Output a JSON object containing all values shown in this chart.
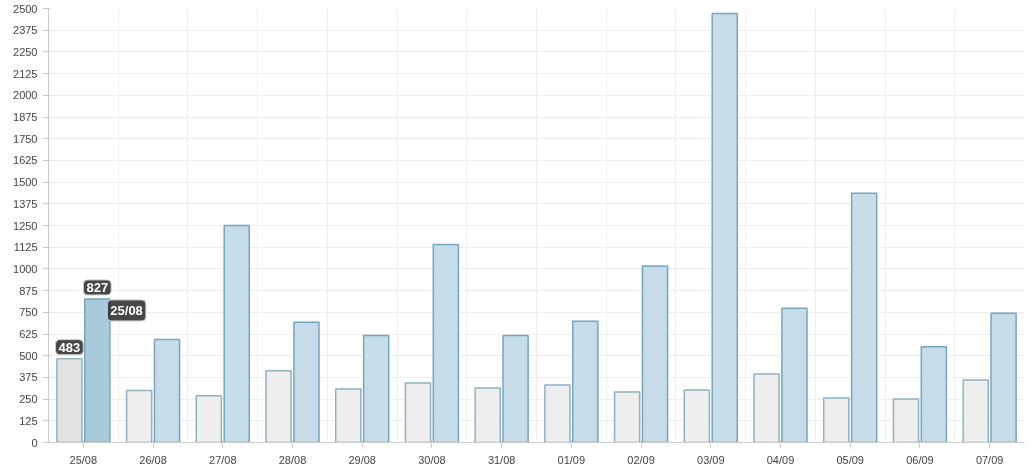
{
  "chart_data": {
    "type": "bar",
    "categories": [
      "25/08",
      "26/08",
      "27/08",
      "28/08",
      "29/08",
      "30/08",
      "31/08",
      "01/09",
      "02/09",
      "03/09",
      "04/09",
      "05/09",
      "06/09",
      "07/09"
    ],
    "series": [
      {
        "color": "#eeeeee",
        "colors": [
          "#e2e2e2",
          "#eeeeee",
          "#eeeeee",
          "#eeeeee",
          "#eeeeee",
          "#eeeeee",
          "#eeeeee",
          "#eeeeee",
          "#eeeeee",
          "#eeeeee",
          "#eeeeee",
          "#eeeeee",
          "#eeeeee",
          "#eeeeee"
        ],
        "values": [
          483,
          300,
          270,
          413,
          308,
          343,
          314,
          331,
          291,
          302,
          395,
          256,
          250,
          360
        ],
        "value_labels": [
          "483",
          null,
          null,
          null,
          null,
          null,
          null,
          null,
          null,
          null,
          null,
          null,
          null,
          null
        ]
      },
      {
        "color": "#c6dde9",
        "colors": [
          "#a9cadb",
          "#c6dde9",
          "#c6dde9",
          "#c6dde9",
          "#c6dde9",
          "#c6dde9",
          "#c6dde9",
          "#c6dde9",
          "#c6dde9",
          "#c6dde9",
          "#c6dde9",
          "#c6dde9",
          "#c6dde9",
          "#c6dde9"
        ],
        "values": [
          827,
          593,
          1250,
          692,
          616,
          1140,
          616,
          698,
          1017,
          2471,
          773,
          1436,
          552,
          744
        ],
        "value_labels": [
          "827",
          null,
          null,
          null,
          null,
          null,
          null,
          null,
          null,
          null,
          null,
          null,
          null,
          null
        ]
      }
    ],
    "ylim": [
      0,
      2500
    ],
    "yticks": [
      0,
      125,
      250,
      375,
      500,
      625,
      750,
      875,
      1000,
      1125,
      1250,
      1375,
      1500,
      1625,
      1750,
      1875,
      2000,
      2125,
      2250,
      2375,
      2500
    ],
    "grid": true,
    "annotations": [
      {
        "text": "25/08",
        "x": "25/08",
        "y": 827
      }
    ]
  }
}
